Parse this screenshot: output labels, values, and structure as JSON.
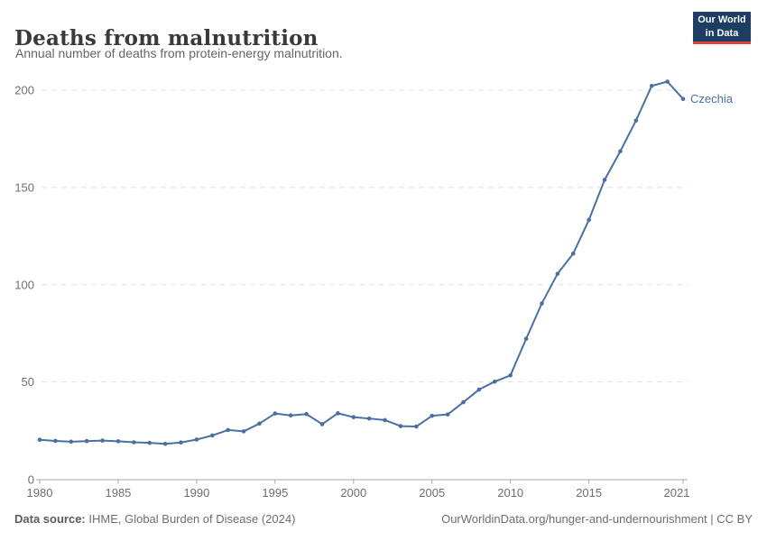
{
  "header": {
    "title": "Deaths from malnutrition",
    "subtitle": "Annual number of deaths from protein-energy malnutrition."
  },
  "logo": {
    "line1": "Our World",
    "line2": "in Data",
    "bg_color": "#1d3d63",
    "accent_color": "#e0403c"
  },
  "chart_data": {
    "type": "line",
    "title": "Deaths from malnutrition",
    "subtitle": "Annual number of deaths from protein-energy malnutrition.",
    "xlabel": "",
    "ylabel": "",
    "grid": "horizontal-dashed",
    "legend": "inline-end-label",
    "xlim": [
      1980,
      2021
    ],
    "ylim": [
      0,
      210
    ],
    "x": [
      1980,
      1981,
      1982,
      1983,
      1984,
      1985,
      1986,
      1987,
      1988,
      1989,
      1990,
      1991,
      1992,
      1993,
      1994,
      1995,
      1996,
      1997,
      1998,
      1999,
      2000,
      2001,
      2002,
      2003,
      2004,
      2005,
      2006,
      2007,
      2008,
      2009,
      2010,
      2011,
      2012,
      2013,
      2014,
      2015,
      2016,
      2017,
      2018,
      2019,
      2020,
      2021
    ],
    "x_tick_years": [
      1980,
      1985,
      1990,
      1995,
      2000,
      2005,
      2010,
      2015,
      2021
    ],
    "y_ticks": [
      0,
      50,
      100,
      150,
      200
    ],
    "series": [
      {
        "name": "Czechia",
        "color": "#4c6fa5",
        "values": [
          20.3,
          19.7,
          19.3,
          19.6,
          19.9,
          19.5,
          19.0,
          18.7,
          18.2,
          18.9,
          20.4,
          22.5,
          25.3,
          24.6,
          28.6,
          33.8,
          32.8,
          33.5,
          28.3,
          33.9,
          31.9,
          31.2,
          30.4,
          27.3,
          27.1,
          32.6,
          33.3,
          39.6,
          46.1,
          50.2,
          53.4,
          72.2,
          90.4,
          105.6,
          116.0,
          133.3,
          153.9,
          168.6,
          184.4,
          202.2,
          204.4,
          195.5
        ]
      }
    ],
    "colors": {
      "gridline": "#e0e0e0",
      "axis": "#a8a8a8",
      "tick_label": "#6f6f6f"
    }
  },
  "footer": {
    "source_label": "Data source:",
    "source_text": " IHME, Global Burden of Disease (2024)",
    "right_text": "OurWorldinData.org/hunger-and-undernourishment | CC BY"
  }
}
